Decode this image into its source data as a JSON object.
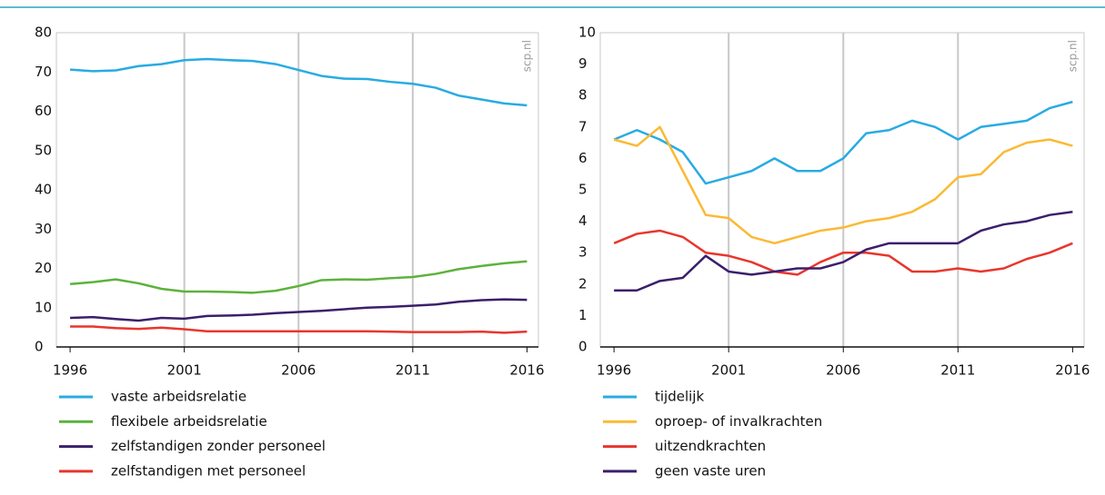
{
  "chart_data": [
    {
      "type": "line",
      "annotation": "scp.nl",
      "x": [
        1996,
        1997,
        1998,
        1999,
        2000,
        2001,
        2002,
        2003,
        2004,
        2005,
        2006,
        2007,
        2008,
        2009,
        2010,
        2011,
        2012,
        2013,
        2014,
        2015,
        2016
      ],
      "xlim": [
        1995.4,
        2016.5
      ],
      "xticks": [
        1996,
        2001,
        2006,
        2011,
        2016
      ],
      "ylim": [
        0,
        80
      ],
      "yticks": [
        0,
        10,
        20,
        30,
        40,
        50,
        60,
        70,
        80
      ],
      "grid": true,
      "series": [
        {
          "name": "vaste arbeidsrelatie",
          "color": "#29abe2",
          "values": [
            70.6,
            70.2,
            70.4,
            71.5,
            72,
            73,
            73.3,
            73,
            72.8,
            72,
            70.5,
            69,
            68.3,
            68.2,
            67.5,
            67,
            66,
            64,
            63,
            62,
            61.5
          ]
        },
        {
          "name": "flexibele arbeidsrelatie",
          "color": "#5cb23c",
          "values": [
            16,
            16.5,
            17.2,
            16.2,
            14.8,
            14.1,
            14.1,
            14,
            13.8,
            14.3,
            15.5,
            17,
            17.2,
            17.1,
            17.5,
            17.8,
            18.6,
            19.8,
            20.6,
            21.3,
            21.8
          ]
        },
        {
          "name": "zelfstandigen zonder personeel",
          "color": "#3b1f6b",
          "values": [
            7.4,
            7.6,
            7.1,
            6.7,
            7.4,
            7.2,
            7.9,
            8,
            8.2,
            8.6,
            8.9,
            9.2,
            9.6,
            10,
            10.2,
            10.5,
            10.8,
            11.5,
            11.9,
            12.1,
            12
          ]
        },
        {
          "name": "zelfstandigen met personeel",
          "color": "#e8362d",
          "values": [
            5.2,
            5.2,
            4.8,
            4.6,
            4.9,
            4.5,
            4,
            4,
            4,
            4,
            4,
            4,
            4,
            4,
            3.9,
            3.8,
            3.8,
            3.8,
            3.9,
            3.6,
            3.9
          ]
        }
      ]
    },
    {
      "type": "line",
      "annotation": "scp.nl",
      "x": [
        1996,
        1997,
        1998,
        1999,
        2000,
        2001,
        2002,
        2003,
        2004,
        2005,
        2006,
        2007,
        2008,
        2009,
        2010,
        2011,
        2012,
        2013,
        2014,
        2015,
        2016
      ],
      "xlim": [
        1995.4,
        2016.5
      ],
      "xticks": [
        1996,
        2001,
        2006,
        2011,
        2016
      ],
      "ylim": [
        0,
        10
      ],
      "yticks": [
        0,
        1,
        2,
        3,
        4,
        5,
        6,
        7,
        8,
        9,
        10
      ],
      "grid": true,
      "series": [
        {
          "name": "tijdelijk",
          "color": "#29abe2",
          "values": [
            6.6,
            6.9,
            6.6,
            6.2,
            5.2,
            5.4,
            5.6,
            6.0,
            5.6,
            5.6,
            6.0,
            6.8,
            6.9,
            7.2,
            7.0,
            6.6,
            7.0,
            7.1,
            7.2,
            7.6,
            7.8
          ]
        },
        {
          "name": "oproep- of invalkrachten",
          "color": "#fbb933",
          "values": [
            6.6,
            6.4,
            7.0,
            5.6,
            4.2,
            4.1,
            3.5,
            3.3,
            3.5,
            3.7,
            3.8,
            4.0,
            4.1,
            4.3,
            4.7,
            5.4,
            5.5,
            6.2,
            6.5,
            6.6,
            6.4
          ]
        },
        {
          "name": "uitzendkrachten",
          "color": "#e8362d",
          "values": [
            3.3,
            3.6,
            3.7,
            3.5,
            3.0,
            2.9,
            2.7,
            2.4,
            2.3,
            2.7,
            3.0,
            3.0,
            2.9,
            2.4,
            2.4,
            2.5,
            2.4,
            2.5,
            2.8,
            3.0,
            3.3
          ]
        },
        {
          "name": "geen vaste uren",
          "color": "#3b1f6b",
          "values": [
            1.8,
            1.8,
            2.1,
            2.2,
            2.9,
            2.4,
            2.3,
            2.4,
            2.5,
            2.5,
            2.7,
            3.1,
            3.3,
            3.3,
            3.3,
            3.3,
            3.7,
            3.9,
            4.0,
            4.2,
            4.3
          ]
        }
      ]
    }
  ]
}
